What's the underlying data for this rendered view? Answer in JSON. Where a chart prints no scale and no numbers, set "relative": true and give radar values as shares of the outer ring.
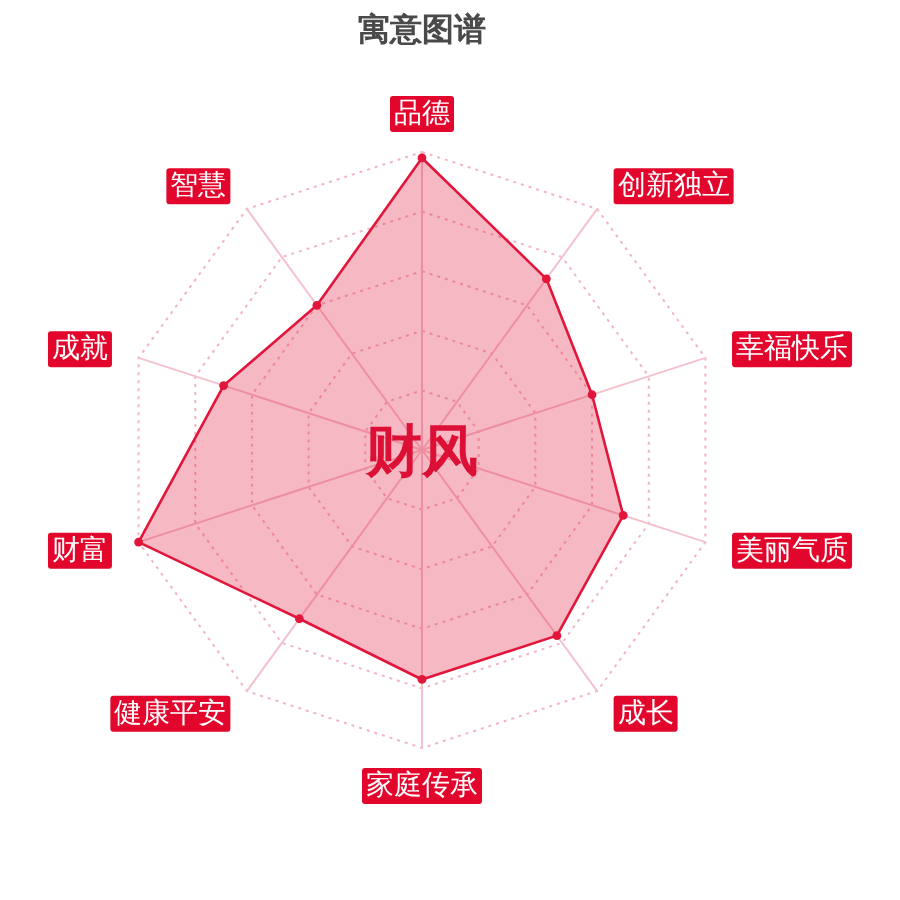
{
  "chart_data": {
    "type": "radar",
    "title": "寓意图谱",
    "categories": [
      "品德",
      "创新独立",
      "幸福快乐",
      "美丽气质",
      "成长",
      "家庭传承",
      "健康平安",
      "财富",
      "成就",
      "智慧"
    ],
    "relative": true,
    "series": [
      {
        "color": "#e2163a",
        "values": [
          0.98,
          0.71,
          0.6,
          0.71,
          0.77,
          0.77,
          0.7,
          1.0,
          0.7,
          0.6
        ]
      }
    ],
    "annotations": [
      "财风"
    ],
    "grid": true,
    "marker": "circle"
  }
}
